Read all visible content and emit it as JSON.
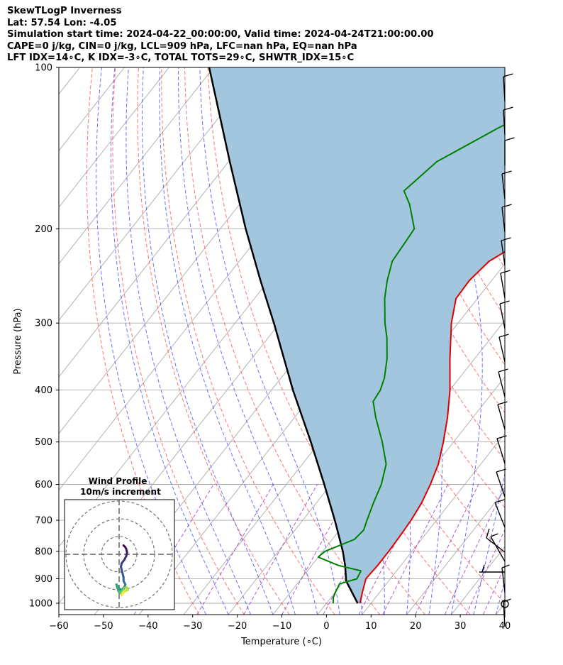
{
  "header": {
    "line1": "SkewTLogP Inverness",
    "line2": "Lat: 57.54   Lon: -4.05",
    "line3": "Simulation start time: 2024-04-22_00:00:00, Valid time: 2024-04-24T21:00:00.00",
    "line4": "CAPE=0 j/kg, CIN=0 j/kg, LCL=909 hPa, LFC=nan hPa, EQ=nan hPa",
    "line5": "LFT IDX=14∘C, K IDX=-3∘C, TOTAL TOTS=29∘C, SHWTR_IDX=15∘C"
  },
  "colors": {
    "temperature": "#e00000",
    "dewpoint": "#008000",
    "parcel": "#000000",
    "cape_fill": "#a3c6df",
    "dry_adiabat": "#ff4444",
    "moist_adiabat": "#3344ff",
    "mixing_ratio": "#9933cc",
    "isotherm": "#aaaaaa"
  },
  "chart_data": [
    {
      "type": "line",
      "title": "",
      "xlabel": "Temperature (∘C)",
      "ylabel": "Pressure (hPa)",
      "xlim": [
        -60,
        40
      ],
      "ylim": [
        1050,
        100
      ],
      "y_scale": "log",
      "grid": true,
      "x_ticks": [
        "−60",
        "−50",
        "−40",
        "−30",
        "−20",
        "−10",
        "0",
        "10",
        "20",
        "30",
        "40"
      ],
      "y_ticks": [
        "100",
        "200",
        "300",
        "400",
        "500",
        "600",
        "700",
        "800",
        "900",
        "1000"
      ],
      "series": [
        {
          "role": "temperature",
          "pressure": [
            1000,
            950,
            900,
            850,
            800,
            750,
            700,
            650,
            600,
            550,
            500,
            450,
            400,
            350,
            300,
            270,
            250,
            230,
            200,
            180,
            150,
            130,
            115,
            100
          ],
          "values": [
            7.5,
            6.0,
            4.5,
            4.8,
            4.8,
            4.6,
            4.3,
            3.6,
            2.3,
            0.5,
            -2.3,
            -5.7,
            -10.0,
            -15.5,
            -21.5,
            -24.8,
            -25.0,
            -24.0,
            -17.5,
            -8.9,
            6.2,
            12.6,
            16.3,
            18.0
          ]
        },
        {
          "role": "dewpoint",
          "pressure": [
            1000,
            975,
            950,
            920,
            900,
            870,
            850,
            820,
            800,
            760,
            730,
            700,
            650,
            600,
            550,
            500,
            450,
            420,
            400,
            380,
            350,
            320,
            300,
            270,
            250,
            230,
            210,
            200,
            180,
            170,
            150,
            130,
            110,
            100
          ],
          "values": [
            1.5,
            0.5,
            0.0,
            -0.5,
            2.5,
            2.0,
            -4.0,
            -10.0,
            -9.5,
            -5.0,
            -4.6,
            -5.6,
            -7.2,
            -8.7,
            -11.2,
            -16.0,
            -21.8,
            -25.2,
            -25.6,
            -26.8,
            -29.6,
            -33.3,
            -36.4,
            -40.8,
            -43.4,
            -45.7,
            -46.2,
            -46.5,
            -51.9,
            -55.5,
            -53.3,
            -45.6,
            -35.5,
            -28.0
          ]
        },
        {
          "role": "parcel",
          "pressure": [
            1000,
            909,
            850,
            800,
            700,
            600,
            500,
            400,
            300,
            250,
            200,
            150,
            100
          ],
          "values": [
            7.0,
            0.5,
            -2.5,
            -5.5,
            -12.8,
            -21.5,
            -32.0,
            -45.2,
            -61.3,
            -71.8,
            -84.3,
            -99.7,
            -121.0
          ]
        }
      ]
    },
    {
      "type": "scatter",
      "title": "Wind Profile",
      "subtitle": "10m/s increment",
      "u_ms": [
        2.5,
        3.5,
        4.0,
        4.5,
        4.0,
        3.0,
        1.5,
        1.0,
        1.5,
        2.0,
        2.5,
        2.5,
        3.0,
        3.5,
        3.0,
        2.0,
        0.5,
        -0.5,
        -1.5,
        -1.0,
        -0.5,
        0.0,
        0.5,
        1.0,
        2.0,
        3.0,
        4.0,
        4.5,
        5.0,
        4.0,
        3.0,
        2.0,
        1.5
      ],
      "v_ms": [
        5.0,
        4.0,
        3.0,
        1.0,
        -1.0,
        -3.0,
        -5.0,
        -7.0,
        -9.0,
        -11.0,
        -13.0,
        -15.0,
        -16.0,
        -17.0,
        -18.5,
        -19.5,
        -20.0,
        -18.5,
        -17.0,
        -19.0,
        -20.5,
        -21.5,
        -22.0,
        -21.0,
        -20.0,
        -19.0,
        -18.5,
        -19.0,
        -20.0,
        -20.5,
        -21.0,
        -22.0,
        -23.0
      ]
    }
  ]
}
